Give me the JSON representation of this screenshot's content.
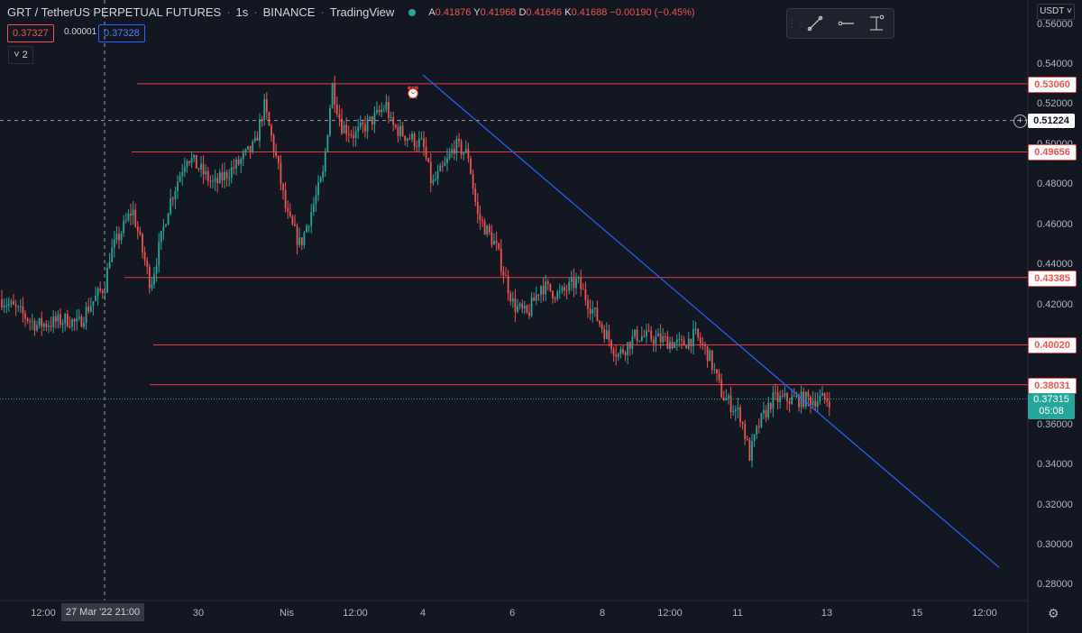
{
  "header": {
    "symbol": "GRT / TetherUS PERPETUAL FUTURES",
    "interval": "1s",
    "exchange": "BINANCE",
    "source": "TradingView",
    "ohlc": {
      "a": "0.41876",
      "y": "0.41968",
      "d": "0.41646",
      "k": "0.41688",
      "change": "−0.00190 (−0.45%)"
    },
    "sell_price": "0.37327",
    "spread": "0.00001",
    "buy_price": "0.37328",
    "indicator_count": "2",
    "currency": "USDT"
  },
  "colors": {
    "bg": "#131722",
    "up": "#26a69a",
    "down": "#ef5350",
    "level": "#f23645",
    "trend": "#2962ff"
  },
  "icons": [
    "trend-line-icon",
    "horizontal-ray-icon",
    "price-range-icon",
    "alarm-clock-icon",
    "plus-circle-icon",
    "gear-icon"
  ],
  "chart_data": {
    "type": "candlestick",
    "ylim": [
      0.27,
      0.565
    ],
    "y_ticks": [
      "0.56000",
      "0.54000",
      "0.52000",
      "0.50000",
      "0.48000",
      "0.46000",
      "0.44000",
      "0.42000",
      "0.40000",
      "0.38000",
      "0.36000",
      "0.34000",
      "0.32000",
      "0.30000",
      "0.28000"
    ],
    "x_ticks": [
      "12:00",
      "30",
      "Nis",
      "12:00",
      "4",
      "6",
      "8",
      "12:00",
      "11",
      "13",
      "15",
      "12:00"
    ],
    "crosshair": {
      "x_label": "27 Mar '22  21:00",
      "y_label": "0.51224",
      "y": 0.51224
    },
    "current_price": {
      "value": "0.37315",
      "countdown": "05:08",
      "y": 0.37315
    },
    "horizontal_levels": [
      {
        "label": "0.53060",
        "y": 0.5306
      },
      {
        "label": "0.49656",
        "y": 0.49656
      },
      {
        "label": "0.43385",
        "y": 0.43385
      },
      {
        "label": "0.40020",
        "y": 0.4002
      },
      {
        "label": "0.38031",
        "y": 0.38031
      }
    ],
    "trend_line": {
      "start": {
        "day": 4.0,
        "y": 0.535
      },
      "end": {
        "day": 16.7,
        "y": 0.289
      }
    },
    "path_days": [
      25.6,
      26.5,
      27.2,
      27.4,
      27.6,
      28.0,
      28.1,
      28.6,
      29.0,
      29.4,
      29.8,
      30.4,
      30.9,
      31.3,
      31.5,
      31.8,
      32.0,
      32.3,
      32.8,
      33.0,
      33.2,
      33.5,
      34.0,
      34.2,
      34.3,
      34.6,
      35.0,
      35.2,
      35.5,
      35.7,
      36.0,
      36.2,
      36.6,
      37.0,
      37.3,
      37.6,
      38.0,
      38.4,
      38.8,
      39.3,
      39.7,
      40.2,
      40.4,
      40.7,
      41.0,
      41.3,
      41.6,
      42.0,
      42.2,
      42.4,
      42.7,
      43.0
    ],
    "path_close": [
      0.425,
      0.41,
      0.413,
      0.41,
      0.418,
      0.43,
      0.445,
      0.468,
      0.43,
      0.47,
      0.495,
      0.48,
      0.49,
      0.5,
      0.52,
      0.49,
      0.465,
      0.45,
      0.485,
      0.53,
      0.51,
      0.505,
      0.515,
      0.52,
      0.51,
      0.505,
      0.5,
      0.48,
      0.49,
      0.5,
      0.495,
      0.465,
      0.45,
      0.42,
      0.415,
      0.43,
      0.425,
      0.432,
      0.415,
      0.395,
      0.405,
      0.403,
      0.402,
      0.4,
      0.405,
      0.395,
      0.375,
      0.365,
      0.345,
      0.36,
      0.373,
      0.373
    ]
  }
}
